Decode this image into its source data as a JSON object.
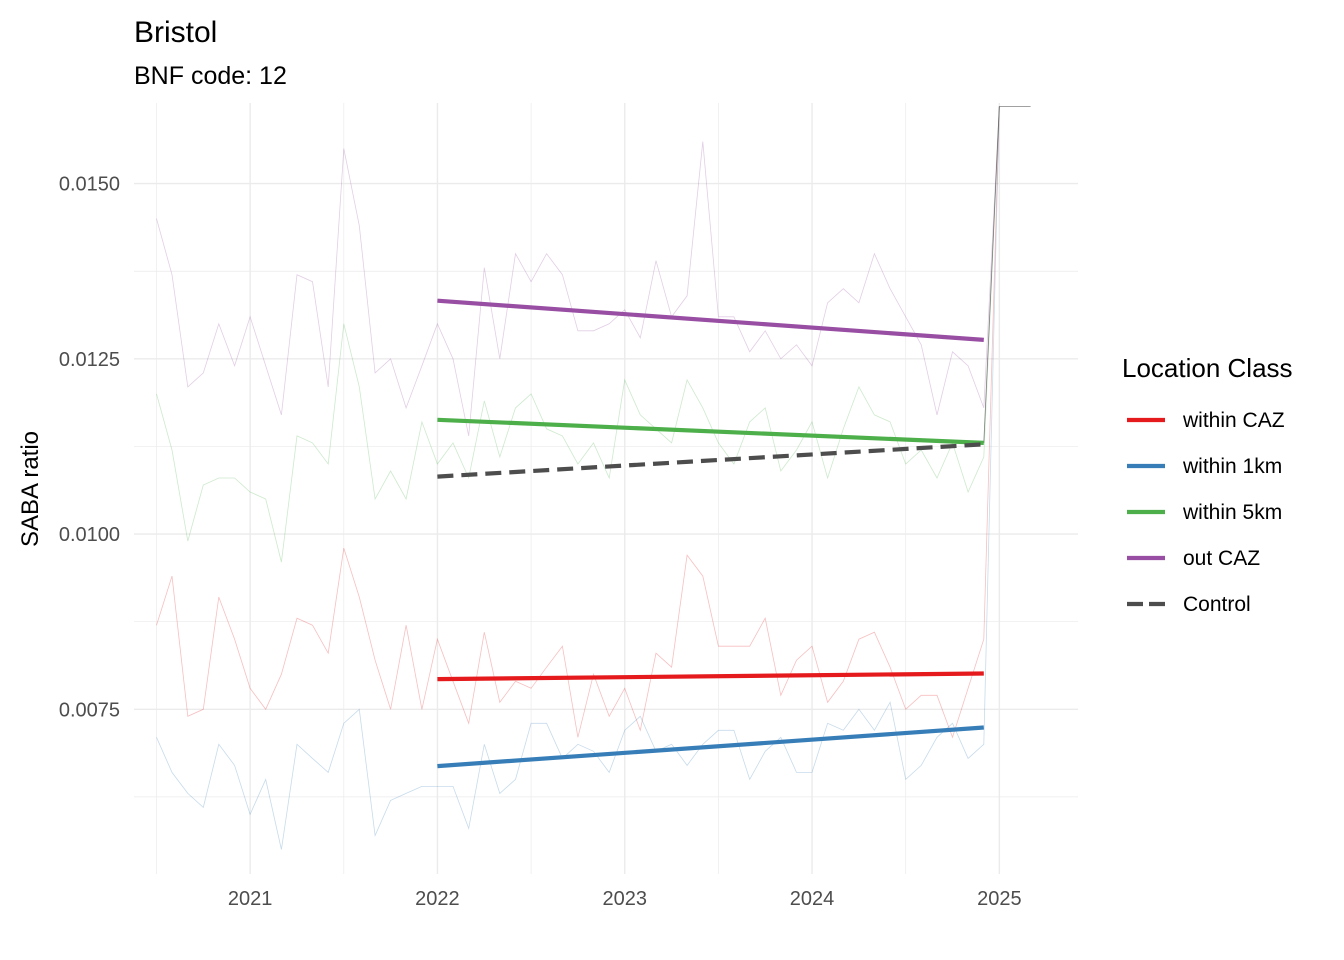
{
  "chart_data": {
    "type": "line",
    "title": "Bristol",
    "subtitle": "BNF code: 12",
    "xlabel": "",
    "ylabel": "SABA ratio",
    "xlim": [
      2020.38,
      2025.42
    ],
    "ylim": [
      0.00515,
      0.01615
    ],
    "x_ticks": [
      "2021",
      "2022",
      "2023",
      "2024",
      "2025"
    ],
    "y_ticks": [
      "0.0075",
      "0.0100",
      "0.0125",
      "0.0150"
    ],
    "grid": true,
    "legend": {
      "title": "Location Class",
      "position": "right"
    },
    "series": [
      {
        "name": "within CAZ",
        "color": "#E41A1C",
        "raw": [
          [
            2020.5,
            0.0087
          ],
          [
            2020.583,
            0.0094
          ],
          [
            2020.667,
            0.0074
          ],
          [
            2020.75,
            0.0075
          ],
          [
            2020.833,
            0.0091
          ],
          [
            2020.917,
            0.0085
          ],
          [
            2021.0,
            0.0078
          ],
          [
            2021.083,
            0.0075
          ],
          [
            2021.167,
            0.008
          ],
          [
            2021.25,
            0.0088
          ],
          [
            2021.333,
            0.0087
          ],
          [
            2021.417,
            0.0083
          ],
          [
            2021.5,
            0.0098
          ],
          [
            2021.583,
            0.0091
          ],
          [
            2021.667,
            0.0082
          ],
          [
            2021.75,
            0.0075
          ],
          [
            2021.833,
            0.0087
          ],
          [
            2021.917,
            0.0075
          ],
          [
            2022.0,
            0.0085
          ],
          [
            2022.083,
            0.0079
          ],
          [
            2022.167,
            0.0073
          ],
          [
            2022.25,
            0.0086
          ],
          [
            2022.333,
            0.0076
          ],
          [
            2022.417,
            0.0079
          ],
          [
            2022.5,
            0.0078
          ],
          [
            2022.583,
            0.0081
          ],
          [
            2022.667,
            0.0084
          ],
          [
            2022.75,
            0.0071
          ],
          [
            2022.833,
            0.008
          ],
          [
            2022.917,
            0.0074
          ],
          [
            2023.0,
            0.0078
          ],
          [
            2023.083,
            0.0072
          ],
          [
            2023.167,
            0.0083
          ],
          [
            2023.25,
            0.0081
          ],
          [
            2023.333,
            0.0097
          ],
          [
            2023.417,
            0.0094
          ],
          [
            2023.5,
            0.0084
          ],
          [
            2023.583,
            0.0084
          ],
          [
            2023.667,
            0.0084
          ],
          [
            2023.75,
            0.0088
          ],
          [
            2023.833,
            0.0077
          ],
          [
            2023.917,
            0.0082
          ],
          [
            2024.0,
            0.0084
          ],
          [
            2024.083,
            0.0076
          ],
          [
            2024.167,
            0.0079
          ],
          [
            2024.25,
            0.0085
          ],
          [
            2024.333,
            0.0086
          ],
          [
            2024.417,
            0.0081
          ],
          [
            2024.5,
            0.0075
          ],
          [
            2024.583,
            0.0077
          ],
          [
            2024.667,
            0.0077
          ],
          [
            2024.75,
            0.0071
          ],
          [
            2024.833,
            0.0078
          ],
          [
            2024.917,
            0.0085
          ],
          [
            2025.0,
            0.0161
          ]
        ],
        "trend": [
          [
            2022.0,
            0.00793
          ],
          [
            2024.917,
            0.00801
          ]
        ]
      },
      {
        "name": "within 1km",
        "color": "#377EB8",
        "raw": [
          [
            2020.5,
            0.0071
          ],
          [
            2020.583,
            0.0066
          ],
          [
            2020.667,
            0.0063
          ],
          [
            2020.75,
            0.0061
          ],
          [
            2020.833,
            0.007
          ],
          [
            2020.917,
            0.0067
          ],
          [
            2021.0,
            0.006
          ],
          [
            2021.083,
            0.0065
          ],
          [
            2021.167,
            0.0055
          ],
          [
            2021.25,
            0.007
          ],
          [
            2021.333,
            0.0068
          ],
          [
            2021.417,
            0.0066
          ],
          [
            2021.5,
            0.0073
          ],
          [
            2021.583,
            0.0075
          ],
          [
            2021.667,
            0.0057
          ],
          [
            2021.75,
            0.0062
          ],
          [
            2021.833,
            0.0063
          ],
          [
            2021.917,
            0.0064
          ],
          [
            2022.0,
            0.0064
          ],
          [
            2022.083,
            0.0064
          ],
          [
            2022.167,
            0.0058
          ],
          [
            2022.25,
            0.007
          ],
          [
            2022.333,
            0.0063
          ],
          [
            2022.417,
            0.0065
          ],
          [
            2022.5,
            0.0073
          ],
          [
            2022.583,
            0.0073
          ],
          [
            2022.667,
            0.0068
          ],
          [
            2022.75,
            0.007
          ],
          [
            2022.833,
            0.0069
          ],
          [
            2022.917,
            0.0066
          ],
          [
            2023.0,
            0.0072
          ],
          [
            2023.083,
            0.0074
          ],
          [
            2023.167,
            0.0069
          ],
          [
            2023.25,
            0.007
          ],
          [
            2023.333,
            0.0067
          ],
          [
            2023.417,
            0.007
          ],
          [
            2023.5,
            0.0072
          ],
          [
            2023.583,
            0.0072
          ],
          [
            2023.667,
            0.0065
          ],
          [
            2023.75,
            0.0069
          ],
          [
            2023.833,
            0.0071
          ],
          [
            2023.917,
            0.0066
          ],
          [
            2024.0,
            0.0066
          ],
          [
            2024.083,
            0.0073
          ],
          [
            2024.167,
            0.0072
          ],
          [
            2024.25,
            0.0075
          ],
          [
            2024.333,
            0.0072
          ],
          [
            2024.417,
            0.0076
          ],
          [
            2024.5,
            0.0065
          ],
          [
            2024.583,
            0.0067
          ],
          [
            2024.667,
            0.0071
          ],
          [
            2024.75,
            0.0073
          ],
          [
            2024.833,
            0.0068
          ],
          [
            2024.917,
            0.007
          ],
          [
            2025.0,
            0.0161
          ]
        ],
        "trend": [
          [
            2022.0,
            0.00669
          ],
          [
            2024.917,
            0.00724
          ]
        ]
      },
      {
        "name": "within 5km",
        "color": "#4DAF4A",
        "raw": [
          [
            2020.5,
            0.012
          ],
          [
            2020.583,
            0.0112
          ],
          [
            2020.667,
            0.0099
          ],
          [
            2020.75,
            0.0107
          ],
          [
            2020.833,
            0.0108
          ],
          [
            2020.917,
            0.0108
          ],
          [
            2021.0,
            0.0106
          ],
          [
            2021.083,
            0.0105
          ],
          [
            2021.167,
            0.0096
          ],
          [
            2021.25,
            0.0114
          ],
          [
            2021.333,
            0.0113
          ],
          [
            2021.417,
            0.011
          ],
          [
            2021.5,
            0.013
          ],
          [
            2021.583,
            0.0121
          ],
          [
            2021.667,
            0.0105
          ],
          [
            2021.75,
            0.0109
          ],
          [
            2021.833,
            0.0105
          ],
          [
            2021.917,
            0.0116
          ],
          [
            2022.0,
            0.011
          ],
          [
            2022.083,
            0.0113
          ],
          [
            2022.167,
            0.0108
          ],
          [
            2022.25,
            0.0119
          ],
          [
            2022.333,
            0.0111
          ],
          [
            2022.417,
            0.0118
          ],
          [
            2022.5,
            0.012
          ],
          [
            2022.583,
            0.0115
          ],
          [
            2022.667,
            0.0114
          ],
          [
            2022.75,
            0.011
          ],
          [
            2022.833,
            0.0113
          ],
          [
            2022.917,
            0.0108
          ],
          [
            2023.0,
            0.0122
          ],
          [
            2023.083,
            0.0117
          ],
          [
            2023.167,
            0.0115
          ],
          [
            2023.25,
            0.0113
          ],
          [
            2023.333,
            0.0122
          ],
          [
            2023.417,
            0.0118
          ],
          [
            2023.5,
            0.0113
          ],
          [
            2023.583,
            0.011
          ],
          [
            2023.667,
            0.0116
          ],
          [
            2023.75,
            0.0118
          ],
          [
            2023.833,
            0.0109
          ],
          [
            2023.917,
            0.0112
          ],
          [
            2024.0,
            0.0116
          ],
          [
            2024.083,
            0.0108
          ],
          [
            2024.167,
            0.0115
          ],
          [
            2024.25,
            0.0121
          ],
          [
            2024.333,
            0.0117
          ],
          [
            2024.417,
            0.0116
          ],
          [
            2024.5,
            0.011
          ],
          [
            2024.583,
            0.0112
          ],
          [
            2024.667,
            0.0108
          ],
          [
            2024.75,
            0.0113
          ],
          [
            2024.833,
            0.0106
          ],
          [
            2024.917,
            0.0111
          ],
          [
            2025.0,
            0.0161
          ]
        ],
        "trend": [
          [
            2022.0,
            0.01163
          ],
          [
            2024.917,
            0.0113
          ]
        ]
      },
      {
        "name": "out CAZ",
        "color": "#984EA3",
        "raw": [
          [
            2020.5,
            0.0145
          ],
          [
            2020.583,
            0.0137
          ],
          [
            2020.667,
            0.0121
          ],
          [
            2020.75,
            0.0123
          ],
          [
            2020.833,
            0.013
          ],
          [
            2020.917,
            0.0124
          ],
          [
            2021.0,
            0.0131
          ],
          [
            2021.083,
            0.0124
          ],
          [
            2021.167,
            0.0117
          ],
          [
            2021.25,
            0.0137
          ],
          [
            2021.333,
            0.0136
          ],
          [
            2021.417,
            0.0121
          ],
          [
            2021.5,
            0.0155
          ],
          [
            2021.583,
            0.0144
          ],
          [
            2021.667,
            0.0123
          ],
          [
            2021.75,
            0.0125
          ],
          [
            2021.833,
            0.0118
          ],
          [
            2021.917,
            0.0124
          ],
          [
            2022.0,
            0.013
          ],
          [
            2022.083,
            0.0125
          ],
          [
            2022.167,
            0.0114
          ],
          [
            2022.25,
            0.0138
          ],
          [
            2022.333,
            0.0125
          ],
          [
            2022.417,
            0.014
          ],
          [
            2022.5,
            0.0136
          ],
          [
            2022.583,
            0.014
          ],
          [
            2022.667,
            0.0137
          ],
          [
            2022.75,
            0.0129
          ],
          [
            2022.833,
            0.0129
          ],
          [
            2022.917,
            0.013
          ],
          [
            2023.0,
            0.0132
          ],
          [
            2023.083,
            0.0128
          ],
          [
            2023.167,
            0.0139
          ],
          [
            2023.25,
            0.0131
          ],
          [
            2023.333,
            0.0134
          ],
          [
            2023.417,
            0.0156
          ],
          [
            2023.5,
            0.0131
          ],
          [
            2023.583,
            0.0131
          ],
          [
            2023.667,
            0.0126
          ],
          [
            2023.75,
            0.0129
          ],
          [
            2023.833,
            0.0125
          ],
          [
            2023.917,
            0.0127
          ],
          [
            2024.0,
            0.0124
          ],
          [
            2024.083,
            0.0133
          ],
          [
            2024.167,
            0.0135
          ],
          [
            2024.25,
            0.0133
          ],
          [
            2024.333,
            0.014
          ],
          [
            2024.417,
            0.0135
          ],
          [
            2024.5,
            0.0131
          ],
          [
            2024.583,
            0.0127
          ],
          [
            2024.667,
            0.0117
          ],
          [
            2024.75,
            0.0126
          ],
          [
            2024.833,
            0.0124
          ],
          [
            2024.917,
            0.0118
          ],
          [
            2025.0,
            0.0161
          ]
        ],
        "trend": [
          [
            2022.0,
            0.01333
          ],
          [
            2024.917,
            0.01277
          ]
        ]
      },
      {
        "name": "Control",
        "color": "#4D4D4D",
        "dashed": true,
        "raw": [
          [
            2024.917,
            0.0113
          ],
          [
            2025.0,
            0.0161
          ],
          [
            2025.167,
            0.0161
          ]
        ],
        "trend": [
          [
            2022.0,
            0.01082
          ],
          [
            2024.917,
            0.01128
          ]
        ]
      }
    ]
  }
}
